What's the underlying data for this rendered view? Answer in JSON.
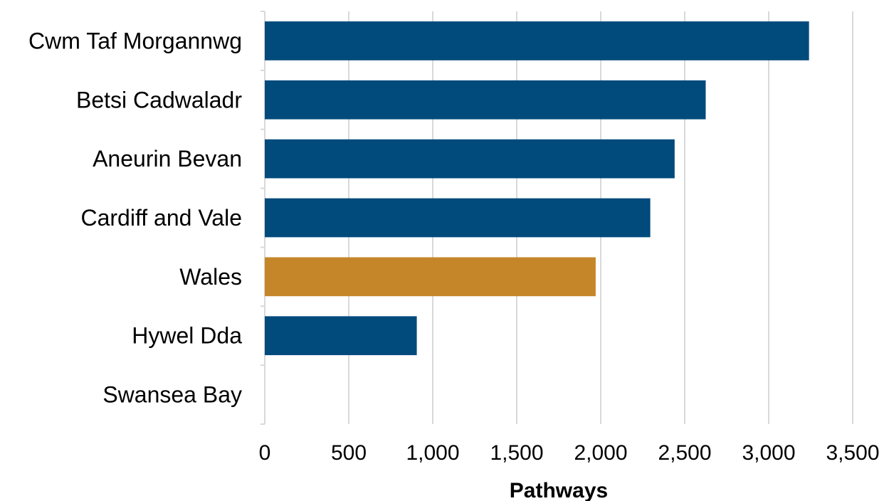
{
  "chart_data": {
    "type": "bar",
    "orientation": "horizontal",
    "title": "",
    "xlabel": "Pathways",
    "ylabel": "",
    "xlim": [
      0,
      3500
    ],
    "xticks": [
      0,
      500,
      1000,
      1500,
      2000,
      2500,
      3000,
      3500
    ],
    "xtick_labels": [
      "0",
      "500",
      "1,000",
      "1,500",
      "2,000",
      "2,500",
      "3,000",
      "3,500"
    ],
    "grid": "vertical",
    "legend": "none",
    "categories": [
      "Cwm Taf Morgannwg",
      "Betsi Cadwaladr",
      "Aneurin Bevan",
      "Cardiff and Vale",
      "Wales",
      "Hywel Dda",
      "Swansea Bay"
    ],
    "values": [
      3240,
      2625,
      2440,
      2295,
      1970,
      905,
      0
    ],
    "highlight_category": "Wales",
    "colors": {
      "default_bar": "#004a7c",
      "highlight_bar": "#c5862a",
      "grid": "#d9d9d9",
      "axis": "#d9d9d9"
    }
  }
}
